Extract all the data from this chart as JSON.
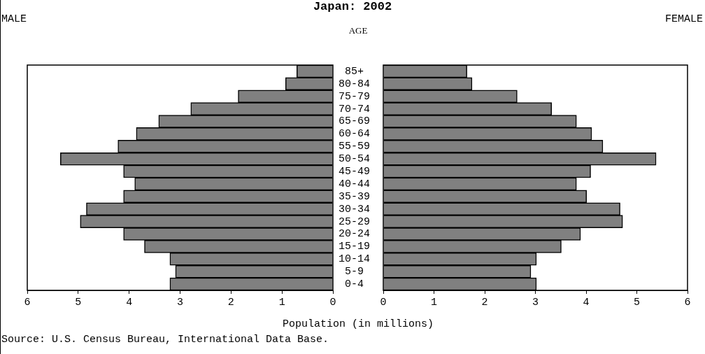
{
  "chart_data": [
    {
      "type": "bar",
      "orientation": "horizontal",
      "title": "Japan: 2002",
      "ylabel": "AGE",
      "xlabel": "Population (in millions)",
      "annotations": [
        "MALE",
        "Source: U.S. Census Bureau, International Data Base."
      ],
      "categories": [
        "85+",
        "80-84",
        "75-79",
        "70-74",
        "65-69",
        "60-64",
        "55-59",
        "50-54",
        "45-49",
        "40-44",
        "35-39",
        "30-34",
        "25-29",
        "20-24",
        "15-19",
        "10-14",
        "5-9",
        "0-4"
      ],
      "values": [
        0.71,
        0.93,
        1.86,
        2.79,
        3.42,
        3.86,
        4.22,
        5.35,
        4.11,
        3.89,
        4.11,
        4.84,
        4.96,
        4.11,
        3.7,
        3.2,
        3.09,
        3.2
      ],
      "color": "#808080",
      "xlim": [
        6,
        0
      ],
      "xticks": [
        6,
        5,
        4,
        3,
        2,
        1,
        0
      ],
      "grid": false,
      "legend": false
    },
    {
      "type": "bar",
      "orientation": "horizontal",
      "annotations": [
        "FEMALE"
      ],
      "tick_labels": "x",
      "categories": [
        null,
        null,
        null,
        null,
        null,
        null,
        null,
        null,
        null,
        null,
        null,
        null,
        null,
        null,
        null,
        null,
        null,
        null
      ],
      "values": [
        1.65,
        1.75,
        2.64,
        3.32,
        3.81,
        4.11,
        4.33,
        5.38,
        4.09,
        3.81,
        4.01,
        4.67,
        4.72,
        3.89,
        3.51,
        3.02,
        2.91,
        3.02
      ],
      "color": "#808080",
      "xlim": [
        0,
        6
      ],
      "xticks": [
        0,
        1,
        2,
        3,
        4,
        5,
        6
      ],
      "grid": false,
      "legend": false
    }
  ]
}
